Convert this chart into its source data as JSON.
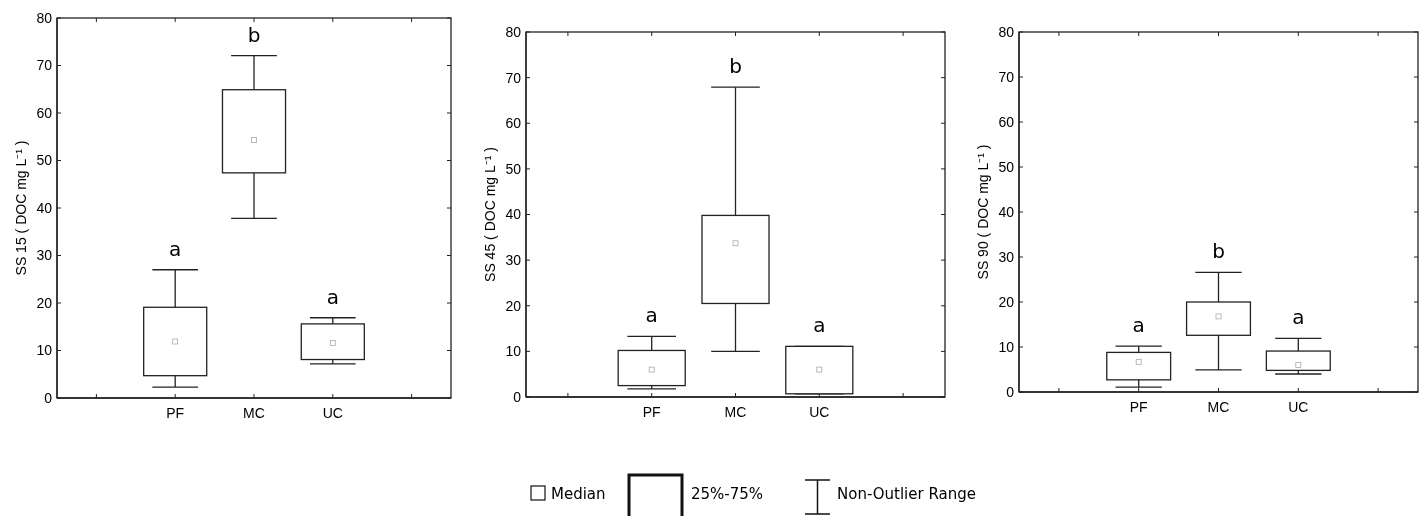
{
  "chart_data": [
    {
      "type": "box",
      "categories": [
        null,
        "PF",
        "MC",
        "UC",
        null
      ],
      "ylabel": "SS 15 ( DOC mg L⁻¹ )",
      "ylim": [
        0,
        80
      ],
      "yticks": [
        0,
        10,
        20,
        30,
        40,
        50,
        60,
        70,
        80
      ],
      "grid": false,
      "boxes": [
        null,
        {
          "low": 2.3,
          "q1": 4.7,
          "median": 11.9,
          "q3": 19.1,
          "high": 27.0
        },
        {
          "low": 37.8,
          "q1": 47.4,
          "median": 54.3,
          "q3": 64.9,
          "high": 72.1
        },
        {
          "low": 7.2,
          "q1": 8.1,
          "median": 11.6,
          "q3": 15.6,
          "high": 16.9
        },
        null
      ],
      "annotations": [
        "a",
        "b",
        "a"
      ]
    },
    {
      "type": "box",
      "categories": [
        null,
        "PF",
        "MC",
        "UC",
        null
      ],
      "ylabel": "SS 45 ( DOC mg L⁻¹ )",
      "ylim": [
        0,
        80
      ],
      "yticks": [
        0,
        10,
        20,
        30,
        40,
        50,
        60,
        70,
        80
      ],
      "grid": false,
      "boxes": [
        null,
        {
          "low": 1.8,
          "q1": 2.5,
          "median": 6.0,
          "q3": 10.2,
          "high": 13.3
        },
        {
          "low": 10.0,
          "q1": 20.5,
          "median": 33.7,
          "q3": 39.8,
          "high": 67.9
        },
        {
          "low": 0.7,
          "q1": 0.7,
          "median": 6.0,
          "q3": 11.1,
          "high": 11.1
        },
        null
      ],
      "annotations": [
        "a",
        "b",
        "a"
      ]
    },
    {
      "type": "box",
      "categories": [
        null,
        "PF",
        "MC",
        "UC",
        null
      ],
      "ylabel": "SS 90 ( DOC mg L⁻¹ )",
      "ylim": [
        0,
        80
      ],
      "yticks": [
        0,
        10,
        20,
        30,
        40,
        50,
        60,
        70,
        80
      ],
      "grid": false,
      "boxes": [
        null,
        {
          "low": 1.1,
          "q1": 2.7,
          "median": 6.7,
          "q3": 8.8,
          "high": 10.2
        },
        {
          "low": 4.9,
          "q1": 12.6,
          "median": 16.8,
          "q3": 20.0,
          "high": 26.6
        },
        {
          "low": 4.0,
          "q1": 4.8,
          "median": 6.0,
          "q3": 9.1,
          "high": 11.9
        },
        null
      ],
      "annotations": [
        "a",
        "b",
        "a"
      ]
    },
    {
      "type": "other",
      "annotations": [
        "Median",
        "25%-75%",
        "Non-Outlier Range"
      ]
    }
  ]
}
